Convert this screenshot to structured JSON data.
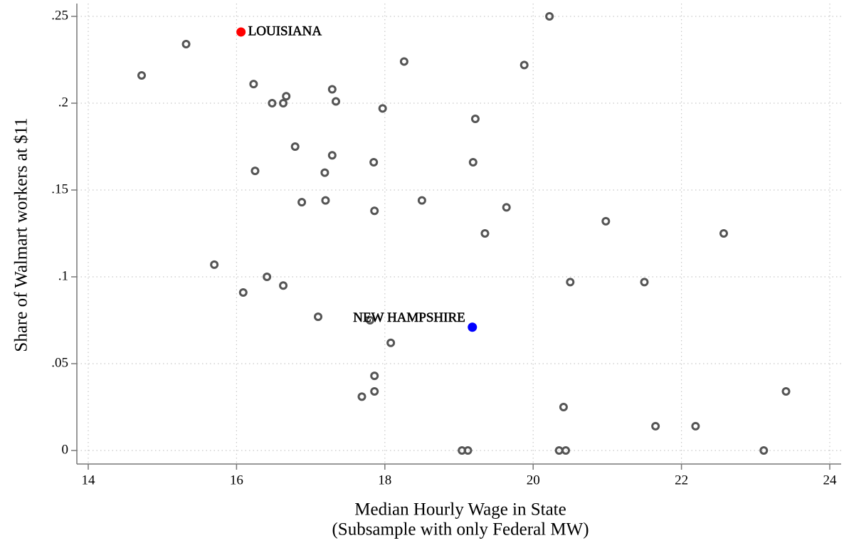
{
  "chart_data": {
    "type": "scatter",
    "ylabel": "Share of Walmart workers at $11",
    "xlabel": [
      "Median Hourly Wage in State",
      "(Subsample with only Federal MW)"
    ],
    "xlim": [
      14,
      24
    ],
    "xticks": [
      14,
      16,
      18,
      20,
      22,
      24
    ],
    "ylim": [
      0,
      0.25
    ],
    "yticks": [
      0,
      {
        "value": 0.05,
        "label": ".05"
      },
      {
        "value": 0.1,
        "label": ".1"
      },
      {
        "value": 0.15,
        "label": ".15"
      },
      {
        "value": 0.2,
        "label": ".2"
      },
      {
        "value": 0.25,
        "label": ".25"
      }
    ],
    "grid": true,
    "series": [
      {
        "color": "#555555",
        "filled": false,
        "x": [
          14.72,
          15.32,
          20.22,
          18.26,
          19.88,
          16.23,
          16.67,
          17.29,
          16.48,
          16.63,
          17.34,
          17.97,
          19.22,
          16.79,
          17.29,
          17.85,
          19.19,
          16.25,
          17.19,
          16.88,
          17.2,
          17.86,
          18.5,
          19.64,
          19.35,
          20.98,
          22.57,
          15.7,
          16.41,
          16.63,
          16.09,
          20.5,
          21.5,
          17.1,
          17.8,
          18.08,
          17.86,
          17.86,
          17.69,
          20.41,
          23.41,
          21.65,
          22.19,
          19.04,
          19.12,
          20.35,
          20.44,
          23.11
        ],
        "values": [
          0.216,
          0.234,
          0.25,
          0.224,
          0.222,
          0.211,
          0.204,
          0.208,
          0.2,
          0.2,
          0.201,
          0.197,
          0.191,
          0.175,
          0.17,
          0.166,
          0.166,
          0.161,
          0.16,
          0.143,
          0.144,
          0.138,
          0.144,
          0.14,
          0.125,
          0.132,
          0.125,
          0.107,
          0.1,
          0.095,
          0.091,
          0.097,
          0.097,
          0.077,
          0.075,
          0.062,
          0.043,
          0.034,
          0.031,
          0.025,
          0.034,
          0.014,
          0.014,
          0,
          0,
          0,
          0,
          0
        ]
      },
      {
        "name": "LOUISIANA",
        "color": "#ff0000",
        "filled": true,
        "x": [
          16.06
        ],
        "values": [
          0.241
        ]
      },
      {
        "name": "NEW HAMPSHIRE",
        "color": "#0000ff",
        "filled": true,
        "x": [
          19.18
        ],
        "values": [
          0.071
        ]
      }
    ]
  }
}
